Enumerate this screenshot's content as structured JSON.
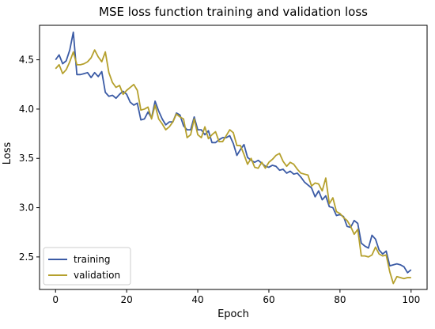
{
  "chart_data": {
    "type": "line",
    "title": "MSE loss function training and validation loss",
    "xlabel": "Epoch",
    "ylabel": "Loss",
    "xlim": [
      -4.5,
      104.5
    ],
    "ylim": [
      2.17,
      4.85
    ],
    "xticks": [
      0,
      20,
      40,
      60,
      80,
      100
    ],
    "yticks": [
      2.5,
      3.0,
      3.5,
      4.0,
      4.5
    ],
    "xtick_labels": [
      "0",
      "20",
      "40",
      "60",
      "80",
      "100"
    ],
    "ytick_labels": [
      "2.5",
      "3.0",
      "3.5",
      "4.0",
      "4.5"
    ],
    "grid": false,
    "legend_position": "lower-left",
    "series": [
      {
        "name": "training",
        "color": "#3b5ba5",
        "x": [
          0,
          1,
          2,
          3,
          4,
          5,
          6,
          7,
          8,
          9,
          10,
          11,
          12,
          13,
          14,
          15,
          16,
          17,
          18,
          19,
          20,
          21,
          22,
          23,
          24,
          25,
          26,
          27,
          28,
          29,
          30,
          31,
          32,
          33,
          34,
          35,
          36,
          37,
          38,
          39,
          40,
          41,
          42,
          43,
          44,
          45,
          46,
          47,
          48,
          49,
          50,
          51,
          52,
          53,
          54,
          55,
          56,
          57,
          58,
          59,
          60,
          61,
          62,
          63,
          64,
          65,
          66,
          67,
          68,
          69,
          70,
          71,
          72,
          73,
          74,
          75,
          76,
          77,
          78,
          79,
          80,
          81,
          82,
          83,
          84,
          85,
          86,
          87,
          88,
          89,
          90,
          91,
          92,
          93,
          94,
          95,
          96,
          97,
          98,
          99,
          100
        ],
        "values": [
          4.5,
          4.55,
          4.46,
          4.49,
          4.6,
          4.78,
          4.35,
          4.35,
          4.36,
          4.37,
          4.32,
          4.37,
          4.33,
          4.38,
          4.17,
          4.13,
          4.14,
          4.11,
          4.15,
          4.18,
          4.15,
          4.07,
          4.04,
          4.06,
          3.89,
          3.9,
          3.97,
          3.91,
          4.08,
          3.98,
          3.9,
          3.84,
          3.87,
          3.87,
          3.96,
          3.94,
          3.83,
          3.79,
          3.79,
          3.92,
          3.79,
          3.79,
          3.74,
          3.78,
          3.66,
          3.66,
          3.69,
          3.71,
          3.71,
          3.73,
          3.65,
          3.53,
          3.59,
          3.64,
          3.51,
          3.48,
          3.46,
          3.48,
          3.45,
          3.42,
          3.41,
          3.43,
          3.42,
          3.38,
          3.39,
          3.35,
          3.37,
          3.34,
          3.35,
          3.31,
          3.26,
          3.23,
          3.2,
          3.11,
          3.17,
          3.08,
          3.12,
          3.01,
          3.0,
          2.92,
          2.93,
          2.91,
          2.81,
          2.8,
          2.87,
          2.84,
          2.64,
          2.61,
          2.59,
          2.72,
          2.68,
          2.57,
          2.53,
          2.56,
          2.41,
          2.42,
          2.43,
          2.42,
          2.4,
          2.34,
          2.37
        ]
      },
      {
        "name": "validation",
        "color": "#b5a02d",
        "x": [
          0,
          1,
          2,
          3,
          4,
          5,
          6,
          7,
          8,
          9,
          10,
          11,
          12,
          13,
          14,
          15,
          16,
          17,
          18,
          19,
          20,
          21,
          22,
          23,
          24,
          25,
          26,
          27,
          28,
          29,
          30,
          31,
          32,
          33,
          34,
          35,
          36,
          37,
          38,
          39,
          40,
          41,
          42,
          43,
          44,
          45,
          46,
          47,
          48,
          49,
          50,
          51,
          52,
          53,
          54,
          55,
          56,
          57,
          58,
          59,
          60,
          61,
          62,
          63,
          64,
          65,
          66,
          67,
          68,
          69,
          70,
          71,
          72,
          73,
          74,
          75,
          76,
          77,
          78,
          79,
          80,
          81,
          82,
          83,
          84,
          85,
          86,
          87,
          88,
          89,
          90,
          91,
          92,
          93,
          94,
          95,
          96,
          97,
          98,
          99,
          100
        ],
        "values": [
          4.41,
          4.45,
          4.36,
          4.4,
          4.48,
          4.58,
          4.45,
          4.45,
          4.46,
          4.48,
          4.52,
          4.6,
          4.53,
          4.48,
          4.58,
          4.37,
          4.27,
          4.22,
          4.24,
          4.15,
          4.19,
          4.22,
          4.25,
          4.19,
          3.99,
          4.0,
          4.02,
          3.9,
          4.04,
          3.9,
          3.85,
          3.79,
          3.82,
          3.87,
          3.95,
          3.92,
          3.9,
          3.71,
          3.74,
          3.9,
          3.74,
          3.71,
          3.82,
          3.7,
          3.74,
          3.77,
          3.67,
          3.67,
          3.73,
          3.79,
          3.76,
          3.63,
          3.63,
          3.54,
          3.44,
          3.5,
          3.41,
          3.4,
          3.46,
          3.4,
          3.46,
          3.49,
          3.53,
          3.55,
          3.47,
          3.42,
          3.46,
          3.44,
          3.39,
          3.35,
          3.34,
          3.33,
          3.22,
          3.25,
          3.24,
          3.17,
          3.3,
          3.04,
          3.1,
          2.96,
          2.94,
          2.9,
          2.87,
          2.81,
          2.73,
          2.78,
          2.51,
          2.51,
          2.5,
          2.52,
          2.6,
          2.53,
          2.51,
          2.52,
          2.35,
          2.23,
          2.3,
          2.29,
          2.28,
          2.29,
          2.29
        ]
      }
    ]
  }
}
